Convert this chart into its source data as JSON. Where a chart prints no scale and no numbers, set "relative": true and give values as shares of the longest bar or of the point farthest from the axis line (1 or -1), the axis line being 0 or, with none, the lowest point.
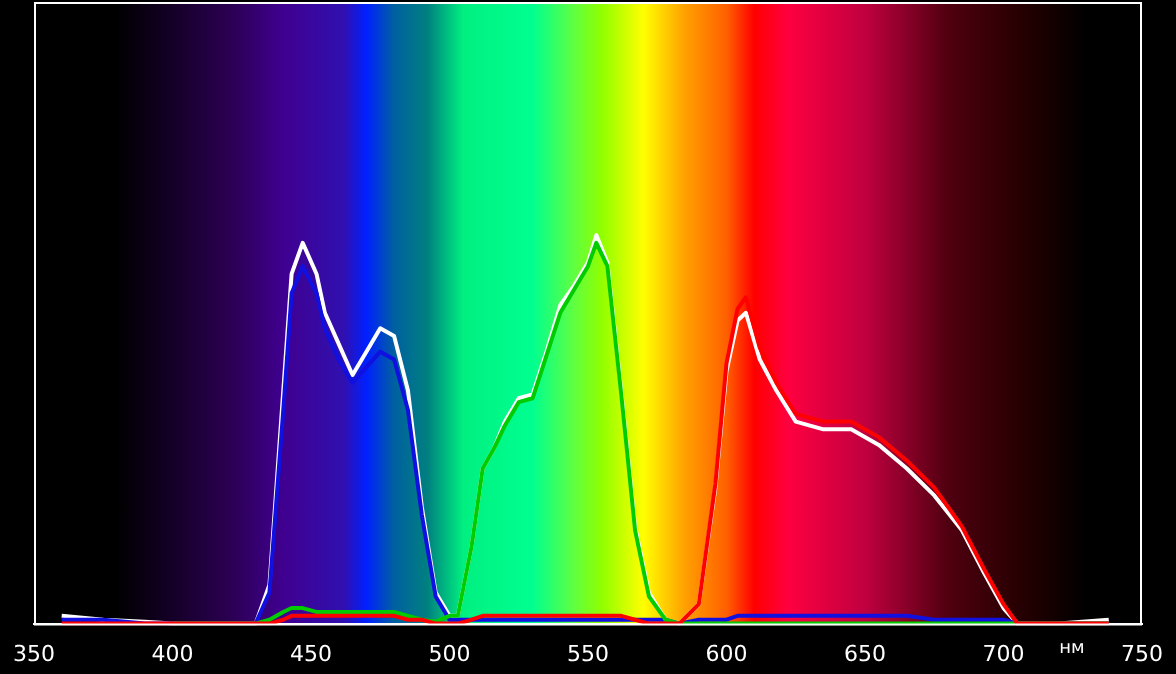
{
  "chart_data": {
    "type": "line",
    "relative": true,
    "xlabel": "нм",
    "x": [
      360,
      375,
      390,
      400,
      430,
      435,
      440,
      443,
      447,
      452,
      455,
      460,
      465,
      470,
      475,
      480,
      485,
      490,
      495,
      500,
      503,
      508,
      512,
      516,
      520,
      525,
      530,
      535,
      540,
      545,
      550,
      553,
      557,
      562,
      567,
      572,
      578,
      583,
      590,
      596,
      600,
      604,
      607,
      612,
      618,
      625,
      635,
      645,
      655,
      665,
      675,
      685,
      693,
      700,
      705,
      720,
      738
    ],
    "xlim": [
      350,
      750
    ],
    "xticks": [
      350,
      400,
      450,
      500,
      550,
      600,
      650,
      700,
      750
    ],
    "grid": false,
    "legend": false,
    "marker": "none",
    "line_style": "solid",
    "series": [
      {
        "color": "#ff0000",
        "values": [
          0,
          0,
          0,
          0,
          0,
          0,
          0.01,
          0.02,
          0.02,
          0.02,
          0.02,
          0.02,
          0.02,
          0.02,
          0.02,
          0.02,
          0.01,
          0.01,
          0,
          0,
          0,
          0.01,
          0.02,
          0.02,
          0.02,
          0.02,
          0.02,
          0.02,
          0.02,
          0.02,
          0.02,
          0.02,
          0.02,
          0.02,
          0.01,
          0,
          0,
          0,
          0.05,
          0.36,
          0.67,
          0.81,
          0.84,
          0.71,
          0.62,
          0.54,
          0.52,
          0.52,
          0.48,
          0.42,
          0.35,
          0.25,
          0.14,
          0.05,
          0,
          0,
          0
        ]
      },
      {
        "color": "#00cc00",
        "values": [
          null,
          null,
          null,
          0,
          0,
          0.01,
          0.03,
          0.04,
          0.04,
          0.03,
          0.03,
          0.03,
          0.03,
          0.03,
          0.03,
          0.03,
          0.02,
          0.01,
          0.005,
          0.02,
          0.02,
          0.2,
          0.4,
          0.45,
          0.51,
          0.57,
          0.58,
          0.69,
          0.8,
          0.86,
          0.92,
          0.98,
          0.92,
          0.59,
          0.24,
          0.07,
          0.01,
          0,
          0,
          0,
          0,
          0,
          0,
          0,
          0,
          0,
          0,
          0,
          0,
          0,
          0,
          0,
          0,
          0,
          0,
          0,
          0
        ]
      },
      {
        "color": "#1010e0",
        "values": [
          0.01,
          0.01,
          0,
          0,
          0,
          0.08,
          0.55,
          0.85,
          0.92,
          0.85,
          0.76,
          0.68,
          0.62,
          0.66,
          0.7,
          0.68,
          0.55,
          0.28,
          0.07,
          0.01,
          0.01,
          0.01,
          0.01,
          0.01,
          0.01,
          0.01,
          0.01,
          0.01,
          0.01,
          0.01,
          0.01,
          0.01,
          0.01,
          0.01,
          0.01,
          0.01,
          0.01,
          0,
          0.01,
          0.01,
          0.01,
          0.02,
          0.02,
          0.02,
          0.02,
          0.02,
          0.02,
          0.02,
          0.02,
          0.02,
          0.01,
          0.01,
          0.01,
          0.01,
          0,
          0,
          0
        ]
      },
      {
        "color": "#ffffff",
        "values": [
          0.02,
          0.01,
          0.005,
          0,
          0,
          0.1,
          0.6,
          0.9,
          0.98,
          0.9,
          0.8,
          0.72,
          0.64,
          0.7,
          0.76,
          0.74,
          0.6,
          0.3,
          0.08,
          0.02,
          0.02,
          0.2,
          0.4,
          0.45,
          0.52,
          0.58,
          0.59,
          0.7,
          0.82,
          0.87,
          0.93,
          1,
          0.93,
          0.6,
          0.25,
          0.08,
          0.01,
          0,
          0.05,
          0.35,
          0.65,
          0.78,
          0.8,
          0.68,
          0.6,
          0.52,
          0.5,
          0.5,
          0.46,
          0.4,
          0.33,
          0.24,
          0.13,
          0.04,
          0,
          0,
          0.01
        ]
      }
    ]
  }
}
